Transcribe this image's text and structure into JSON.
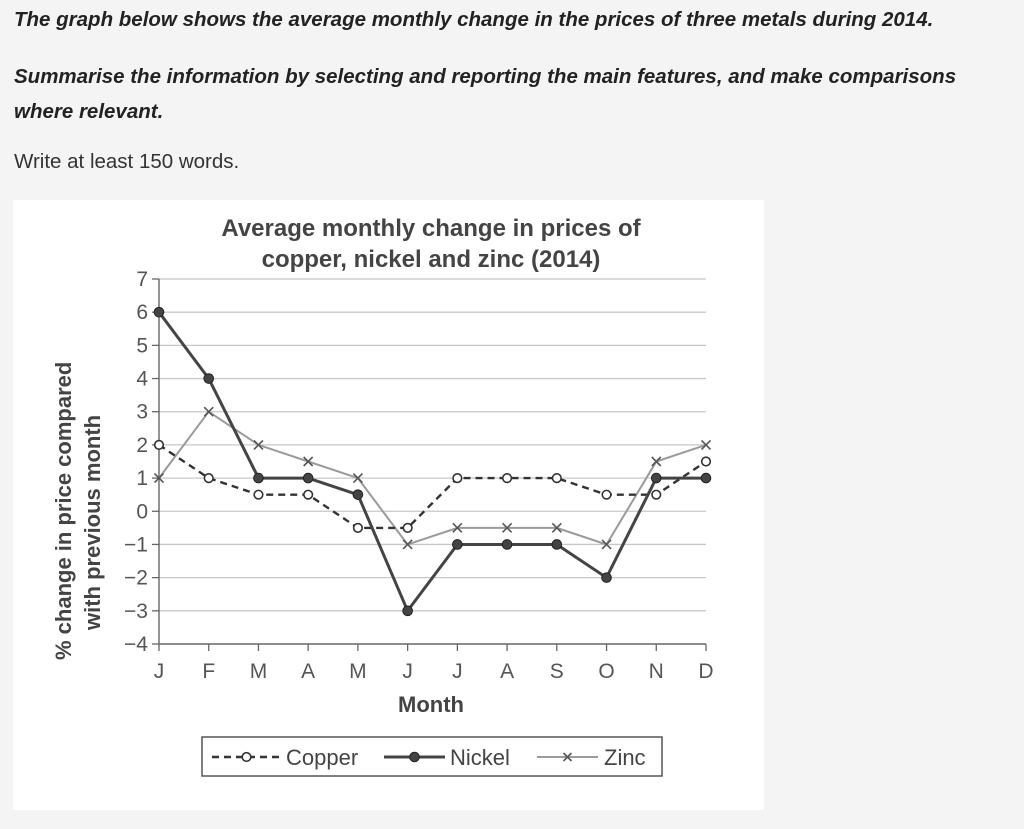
{
  "prompt": {
    "title": "The graph below shows the average monthly change in the prices of three metals during 2014.",
    "instruction": "Summarise the information by selecting and reporting the main features, and make comparisons where relevant.",
    "word_count": "Write at least 150 words."
  },
  "chart_data": {
    "type": "line",
    "title": "Average monthly change in prices of copper, nickel and zinc (2014)",
    "title_lines": [
      "Average monthly change in prices of",
      "copper, nickel and zinc (2014)"
    ],
    "xlabel": "Month",
    "ylabel": "% change in price compared with previous month",
    "ylabel_lines": [
      "% change in price compared",
      "with previous month"
    ],
    "categories": [
      "J",
      "F",
      "M",
      "A",
      "M",
      "J",
      "J",
      "A",
      "S",
      "O",
      "N",
      "D"
    ],
    "ylim": [
      -4,
      7
    ],
    "yticks": [
      "7",
      "6",
      "5",
      "4",
      "3",
      "2",
      "1",
      "0",
      "−1",
      "−2",
      "−3",
      "−4"
    ],
    "ytick_values": [
      7,
      6,
      5,
      4,
      3,
      2,
      1,
      0,
      -1,
      -2,
      -3,
      -4
    ],
    "grid": true,
    "legend_position": "bottom",
    "series": [
      {
        "name": "Copper",
        "marker": "open-circle",
        "line": "dashed",
        "color": "#333333",
        "values": [
          2,
          1,
          0.5,
          0.5,
          -0.5,
          -0.5,
          1,
          1,
          1,
          0.5,
          0.5,
          1.5
        ]
      },
      {
        "name": "Nickel",
        "marker": "filled-circle",
        "line": "solid",
        "color": "#444444",
        "values": [
          6,
          4,
          1,
          1,
          0.5,
          -3,
          -1,
          -1,
          -1,
          -2,
          1,
          1
        ]
      },
      {
        "name": "Zinc",
        "marker": "cross",
        "line": "solid-light",
        "color": "#9a9a9a",
        "values": [
          1,
          3,
          2,
          1.5,
          1,
          -1,
          -0.5,
          -0.5,
          -0.5,
          -1,
          1.5,
          2
        ]
      }
    ]
  }
}
